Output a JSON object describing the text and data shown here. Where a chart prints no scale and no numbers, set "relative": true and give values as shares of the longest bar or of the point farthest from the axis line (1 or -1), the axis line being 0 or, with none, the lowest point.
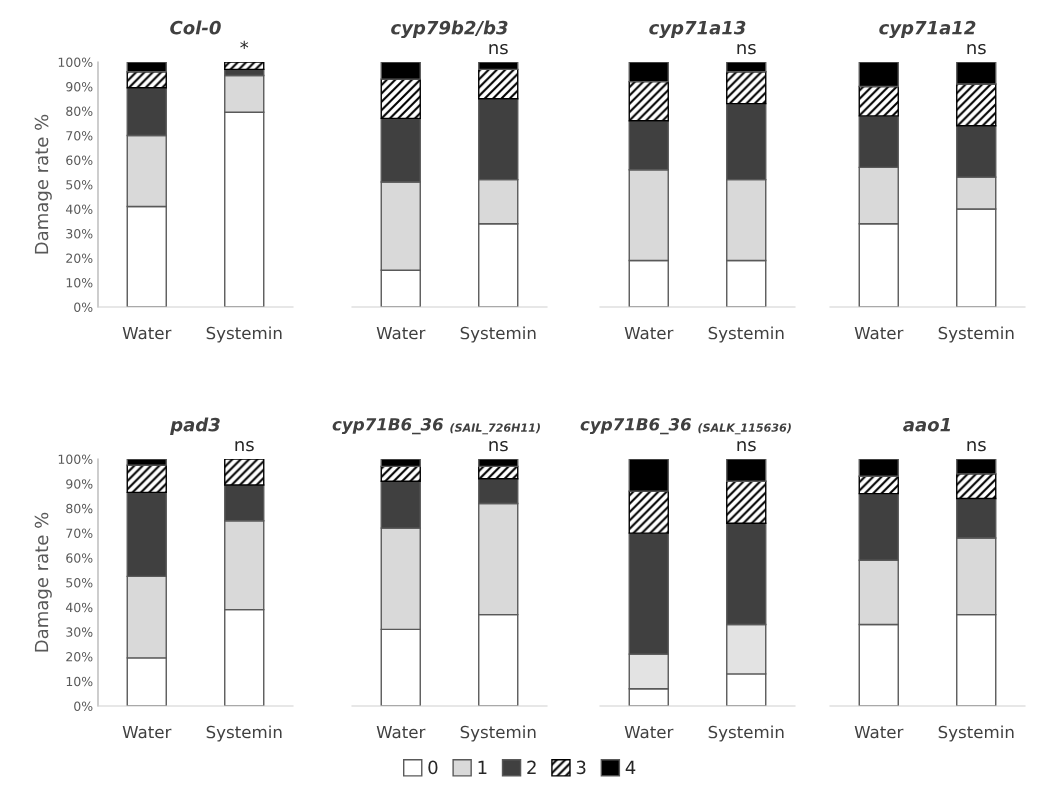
{
  "chart_data": [
    {
      "type": "bar",
      "stacked": true,
      "legend": "bottom",
      "title": "Col-0",
      "ylabel": "Damage rate %",
      "categories": [
        "Water",
        "Systemin"
      ],
      "ylim": [
        0,
        100
      ],
      "yticks": [
        {
          "value": 0,
          "label": "0%"
        },
        {
          "value": 10,
          "label": "10%"
        },
        {
          "value": 20,
          "label": "20%"
        },
        {
          "value": 30,
          "label": "30%"
        },
        {
          "value": 40,
          "label": "40%"
        },
        {
          "value": 50,
          "label": "50%"
        },
        {
          "value": 60,
          "label": "60%"
        },
        {
          "value": 70,
          "label": "70%"
        },
        {
          "value": 80,
          "label": "80%"
        },
        {
          "value": 90,
          "label": "90%"
        },
        {
          "value": 100,
          "label": "100%"
        }
      ],
      "series": [
        {
          "name": "0",
          "color": "#ffffff",
          "values": [
            41,
            79.5
          ]
        },
        {
          "name": "1",
          "color": "#d9d9d9",
          "values": [
            29,
            15
          ]
        },
        {
          "name": "2",
          "color": "#404040",
          "values": [
            19.5,
            2.5
          ]
        },
        {
          "name": "3",
          "color": "#000000",
          "values": [
            6.5,
            3
          ]
        },
        {
          "name": "4",
          "color": "#000000",
          "values": [
            4,
            null
          ]
        }
      ],
      "annotations": [
        {
          "text": "*",
          "x": "Systemin",
          "y": 100
        }
      ]
    },
    {
      "type": "bar",
      "stacked": true,
      "relative": true,
      "title": "cyp79b2/b3",
      "categories": [
        "Water",
        "Systemin"
      ],
      "series": [
        {
          "name": "0",
          "color": "#ffffff",
          "values": [
            0.15,
            0.34
          ]
        },
        {
          "name": "1",
          "color": "#d9d9d9",
          "values": [
            0.36,
            0.18
          ]
        },
        {
          "name": "2",
          "color": "#404040",
          "values": [
            0.26,
            0.33
          ]
        },
        {
          "name": "3",
          "color": "#000000",
          "values": [
            0.16,
            0.12
          ]
        },
        {
          "name": "4",
          "color": "#000000",
          "values": [
            0.07,
            0.03
          ]
        }
      ],
      "annotations": [
        {
          "text": "ns",
          "x": "Systemin",
          "y": 1
        }
      ]
    },
    {
      "type": "bar",
      "stacked": true,
      "relative": true,
      "title": "cyp71a13",
      "categories": [
        "Water",
        "Systemin"
      ],
      "series": [
        {
          "name": "0",
          "color": "#ffffff",
          "values": [
            0.19,
            0.19
          ]
        },
        {
          "name": "1",
          "color": "#d9d9d9",
          "values": [
            0.37,
            0.33
          ]
        },
        {
          "name": "2",
          "color": "#404040",
          "values": [
            0.2,
            0.31
          ]
        },
        {
          "name": "3",
          "color": "#000000",
          "values": [
            0.16,
            0.13
          ]
        },
        {
          "name": "4",
          "color": "#000000",
          "values": [
            0.08,
            0.04
          ]
        }
      ],
      "annotations": [
        {
          "text": "ns",
          "x": "Systemin",
          "y": 1
        }
      ]
    },
    {
      "type": "bar",
      "stacked": true,
      "relative": true,
      "title": "cyp71a12",
      "categories": [
        "Water",
        "Systemin"
      ],
      "series": [
        {
          "name": "0",
          "color": "#ffffff",
          "values": [
            0.34,
            0.4
          ]
        },
        {
          "name": "1",
          "color": "#d9d9d9",
          "values": [
            0.23,
            0.13
          ]
        },
        {
          "name": "2",
          "color": "#404040",
          "values": [
            0.21,
            0.21
          ]
        },
        {
          "name": "3",
          "color": "#000000",
          "values": [
            0.12,
            0.17
          ]
        },
        {
          "name": "4",
          "color": "#000000",
          "values": [
            0.1,
            0.09
          ]
        }
      ],
      "annotations": [
        {
          "text": "ns",
          "x": "Systemin",
          "y": 1
        }
      ]
    },
    {
      "type": "bar",
      "stacked": true,
      "title": "pad3",
      "ylabel": "Damage rate %",
      "categories": [
        "Water",
        "Systemin"
      ],
      "ylim": [
        0,
        100
      ],
      "yticks": [
        {
          "value": 0,
          "label": "0%"
        },
        {
          "value": 10,
          "label": "10%"
        },
        {
          "value": 20,
          "label": "20%"
        },
        {
          "value": 30,
          "label": "30%"
        },
        {
          "value": 40,
          "label": "40%"
        },
        {
          "value": 50,
          "label": "50%"
        },
        {
          "value": 60,
          "label": "60%"
        },
        {
          "value": 70,
          "label": "70%"
        },
        {
          "value": 80,
          "label": "80%"
        },
        {
          "value": 90,
          "label": "90%"
        },
        {
          "value": 100,
          "label": "100%"
        }
      ],
      "series": [
        {
          "name": "0",
          "color": "#ffffff",
          "values": [
            19.5,
            39
          ]
        },
        {
          "name": "1",
          "color": "#d9d9d9",
          "values": [
            33,
            36
          ]
        },
        {
          "name": "2",
          "color": "#404040",
          "values": [
            34,
            14.5
          ]
        },
        {
          "name": "3",
          "color": "#000000",
          "values": [
            11,
            10.5
          ]
        },
        {
          "name": "4",
          "color": "#000000",
          "values": [
            2.5,
            null
          ]
        }
      ],
      "annotations": [
        {
          "text": "ns",
          "x": "Systemin",
          "y": 100
        }
      ]
    },
    {
      "type": "bar",
      "stacked": true,
      "relative": true,
      "title": "cyp71B6_36",
      "subtitle": "(SAIL_726H11)",
      "categories": [
        "Water",
        "Systemin"
      ],
      "series": [
        {
          "name": "0",
          "color": "#ffffff",
          "values": [
            0.31,
            0.37
          ]
        },
        {
          "name": "1",
          "color": "#d9d9d9",
          "values": [
            0.41,
            0.45
          ]
        },
        {
          "name": "2",
          "color": "#404040",
          "values": [
            0.19,
            0.1
          ]
        },
        {
          "name": "3",
          "color": "#000000",
          "values": [
            0.06,
            0.05
          ]
        },
        {
          "name": "4",
          "color": "#000000",
          "values": [
            0.03,
            0.03
          ]
        }
      ],
      "annotations": [
        {
          "text": "ns",
          "x": "Systemin",
          "y": 1
        }
      ]
    },
    {
      "type": "bar",
      "stacked": true,
      "relative": true,
      "title": "cyp71B6_36",
      "subtitle": "(SALK_115636)",
      "categories": [
        "Water",
        "Systemin"
      ],
      "series": [
        {
          "name": "0",
          "color": "#ffffff",
          "values": [
            0.07,
            0.13
          ]
        },
        {
          "name": "1",
          "color": "#e3e3e3",
          "values": [
            0.14,
            0.2
          ]
        },
        {
          "name": "2",
          "color": "#404040",
          "values": [
            0.49,
            0.41
          ]
        },
        {
          "name": "3",
          "color": "#000000",
          "values": [
            0.17,
            0.17
          ]
        },
        {
          "name": "4",
          "color": "#000000",
          "values": [
            0.13,
            0.09
          ]
        }
      ],
      "annotations": [
        {
          "text": "ns",
          "x": "Systemin",
          "y": 1
        }
      ]
    },
    {
      "type": "bar",
      "stacked": true,
      "relative": true,
      "title": "aao1",
      "categories": [
        "Water",
        "Systemin"
      ],
      "series": [
        {
          "name": "0",
          "color": "#ffffff",
          "values": [
            0.33,
            0.37
          ]
        },
        {
          "name": "1",
          "color": "#d9d9d9",
          "values": [
            0.26,
            0.31
          ]
        },
        {
          "name": "2",
          "color": "#404040",
          "values": [
            0.27,
            0.16
          ]
        },
        {
          "name": "3",
          "color": "#000000",
          "values": [
            0.07,
            0.1
          ]
        },
        {
          "name": "4",
          "color": "#000000",
          "values": [
            0.07,
            0.06
          ]
        }
      ],
      "annotations": [
        {
          "text": "ns",
          "x": "Systemin",
          "y": 1
        }
      ]
    }
  ]
}
